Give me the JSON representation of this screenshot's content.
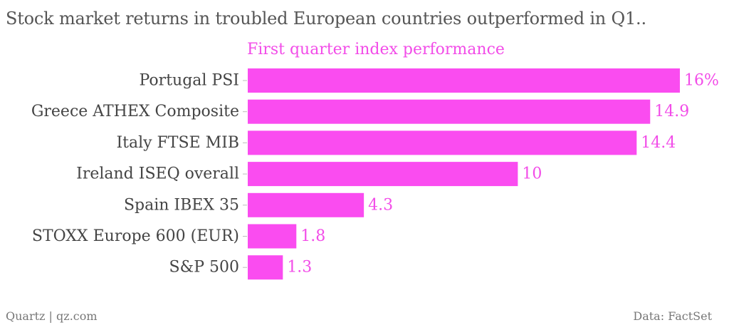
{
  "title": "Stock market returns in troubled European countries outperformed in Q1..",
  "subtitle": "First quarter index performance",
  "footer": {
    "source_left": "Quartz | qz.com",
    "source_right": "Data: FactSet"
  },
  "colors": {
    "bar": "#fa4cf0",
    "value_label": "#f24ce8",
    "category_label": "#444444"
  },
  "chart_data": {
    "type": "bar",
    "orientation": "horizontal",
    "title": "Stock market returns in troubled European countries outperformed in Q1..",
    "subtitle": "First quarter index performance",
    "xlabel": "",
    "ylabel": "",
    "categories": [
      "Portugal PSI",
      "Greece ATHEX Composite",
      "Italy FTSE MIB",
      "Ireland ISEQ overall",
      "Spain IBEX 35",
      "STOXX Europe 600 (EUR)",
      "S&P 500"
    ],
    "values": [
      16,
      14.9,
      14.4,
      10,
      4.3,
      1.8,
      1.3
    ],
    "value_labels": [
      "16%",
      "14.9",
      "14.4",
      "10",
      "4.3",
      "1.8",
      "1.3"
    ],
    "xlim": [
      0,
      16
    ],
    "grid": false,
    "legend": "none"
  }
}
